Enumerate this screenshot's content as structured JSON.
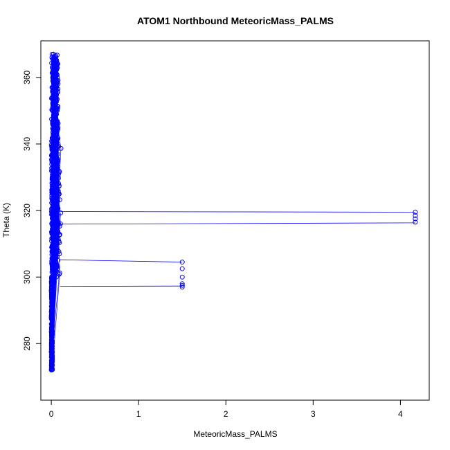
{
  "chart_data": {
    "type": "scatter",
    "title": "ATOM1 Northbound MeteoricMass_PALMS",
    "xlabel": "MeteoricMass_PALMS",
    "ylabel": "Theta (K)",
    "xlim": [
      -0.12,
      4.33
    ],
    "ylim": [
      263,
      371
    ],
    "xticks": [
      0,
      1,
      2,
      3,
      4
    ],
    "yticks": [
      280,
      300,
      320,
      340,
      360
    ],
    "grid": false,
    "legend": "none",
    "marker": "open-circle",
    "line_connecting_points": true,
    "color": "#0000ff",
    "series": [
      {
        "name": "",
        "main_cluster": {
          "x_range": [
            0.0,
            0.14
          ],
          "theta_range": [
            272,
            367
          ]
        },
        "outliers": [
          {
            "x": 4.17,
            "y": 319.5
          },
          {
            "x": 4.17,
            "y": 318.5
          },
          {
            "x": 4.17,
            "y": 317.5
          },
          {
            "x": 4.17,
            "y": 316.5
          },
          {
            "x": 1.5,
            "y": 304.5
          },
          {
            "x": 1.5,
            "y": 302.5
          },
          {
            "x": 1.5,
            "y": 300
          },
          {
            "x": 1.5,
            "y": 298
          },
          {
            "x": 1.5,
            "y": 297.5
          },
          {
            "x": 1.5,
            "y": 297
          }
        ],
        "connecting_lines": [
          {
            "from": {
              "x": 0.1,
              "y": 319.7
            },
            "to": {
              "x": 4.17,
              "y": 319.5
            }
          },
          {
            "from": {
              "x": 0.1,
              "y": 315.9
            },
            "to": {
              "x": 4.17,
              "y": 316.3
            }
          },
          {
            "from": {
              "x": 0.1,
              "y": 305.2
            },
            "to": {
              "x": 1.5,
              "y": 304.5
            }
          },
          {
            "from": {
              "x": 0.1,
              "y": 297.2
            },
            "to": {
              "x": 1.5,
              "y": 297.3
            }
          }
        ]
      }
    ]
  }
}
